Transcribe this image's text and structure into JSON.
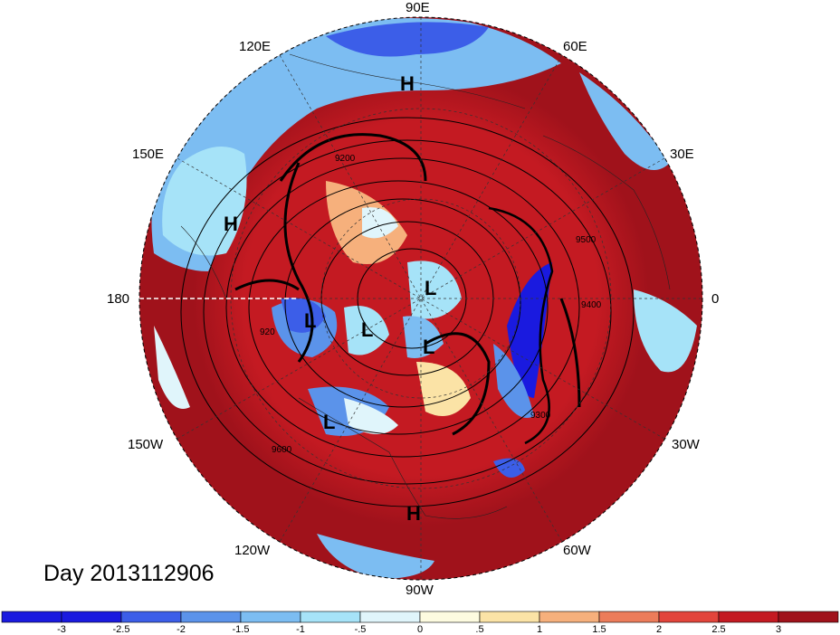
{
  "map": {
    "projection": "polar stereographic (north)",
    "colormap": [
      "#1a1adf",
      "#3c5ee8",
      "#5b93ea",
      "#7cbdf2",
      "#a6e3f8",
      "#e0f5fb",
      "#fdfbe0",
      "#fbe3a6",
      "#f6b07c",
      "#ec7c5a",
      "#e2443b",
      "#c41a22",
      "#a0121b"
    ],
    "longitude_labels": [
      "90E",
      "60E",
      "30E",
      "0",
      "30W",
      "60W",
      "90W",
      "120W",
      "150W",
      "180",
      "150E",
      "120E"
    ],
    "pressure_systems": [
      "H",
      "H",
      "H",
      "L",
      "L",
      "L",
      "L",
      "L"
    ],
    "contour_labels": [
      "9200",
      "9300",
      "9400",
      "9500",
      "9600",
      "920"
    ]
  },
  "title": {
    "day_label": "Day 2013112906"
  },
  "colorbar": {
    "ticks": [
      "-3",
      "-2.5",
      "-2",
      "-1.5",
      "-1",
      "-.5",
      "0",
      ".5",
      "1",
      "1.5",
      "2",
      "2.5",
      "3"
    ]
  }
}
